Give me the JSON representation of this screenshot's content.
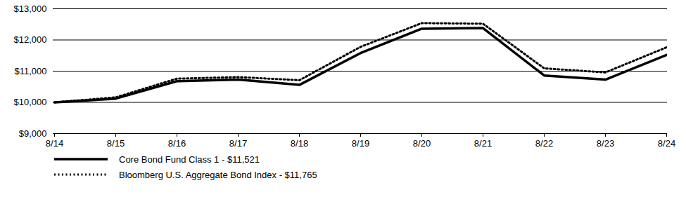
{
  "chart_data": {
    "type": "line",
    "x": [
      "8/14",
      "8/15",
      "8/16",
      "8/17",
      "8/18",
      "8/19",
      "8/20",
      "8/21",
      "8/22",
      "8/23",
      "8/24"
    ],
    "series": [
      {
        "name": "Core Bond Fund Class 1 - $11,521",
        "color": "#000000",
        "line_style": "solid",
        "values": [
          10000,
          10120,
          10680,
          10730,
          10560,
          11580,
          12360,
          12380,
          10860,
          10730,
          11521
        ]
      },
      {
        "name": "Bloomberg U.S. Aggregate Bond Index - $11,765",
        "color": "#000000",
        "line_style": "dotted",
        "values": [
          10000,
          10160,
          10760,
          10810,
          10710,
          11780,
          12540,
          12520,
          11090,
          10960,
          11765
        ]
      }
    ],
    "ylim": [
      9000,
      13000
    ],
    "yticks": [
      {
        "value": 9000,
        "label": "$9,000"
      },
      {
        "value": 10000,
        "label": "$10,000"
      },
      {
        "value": 11000,
        "label": "$11,000"
      },
      {
        "value": 12000,
        "label": "$12,000"
      },
      {
        "value": 13000,
        "label": "$13,000"
      }
    ],
    "grid": true,
    "legend": "bottom-left"
  }
}
